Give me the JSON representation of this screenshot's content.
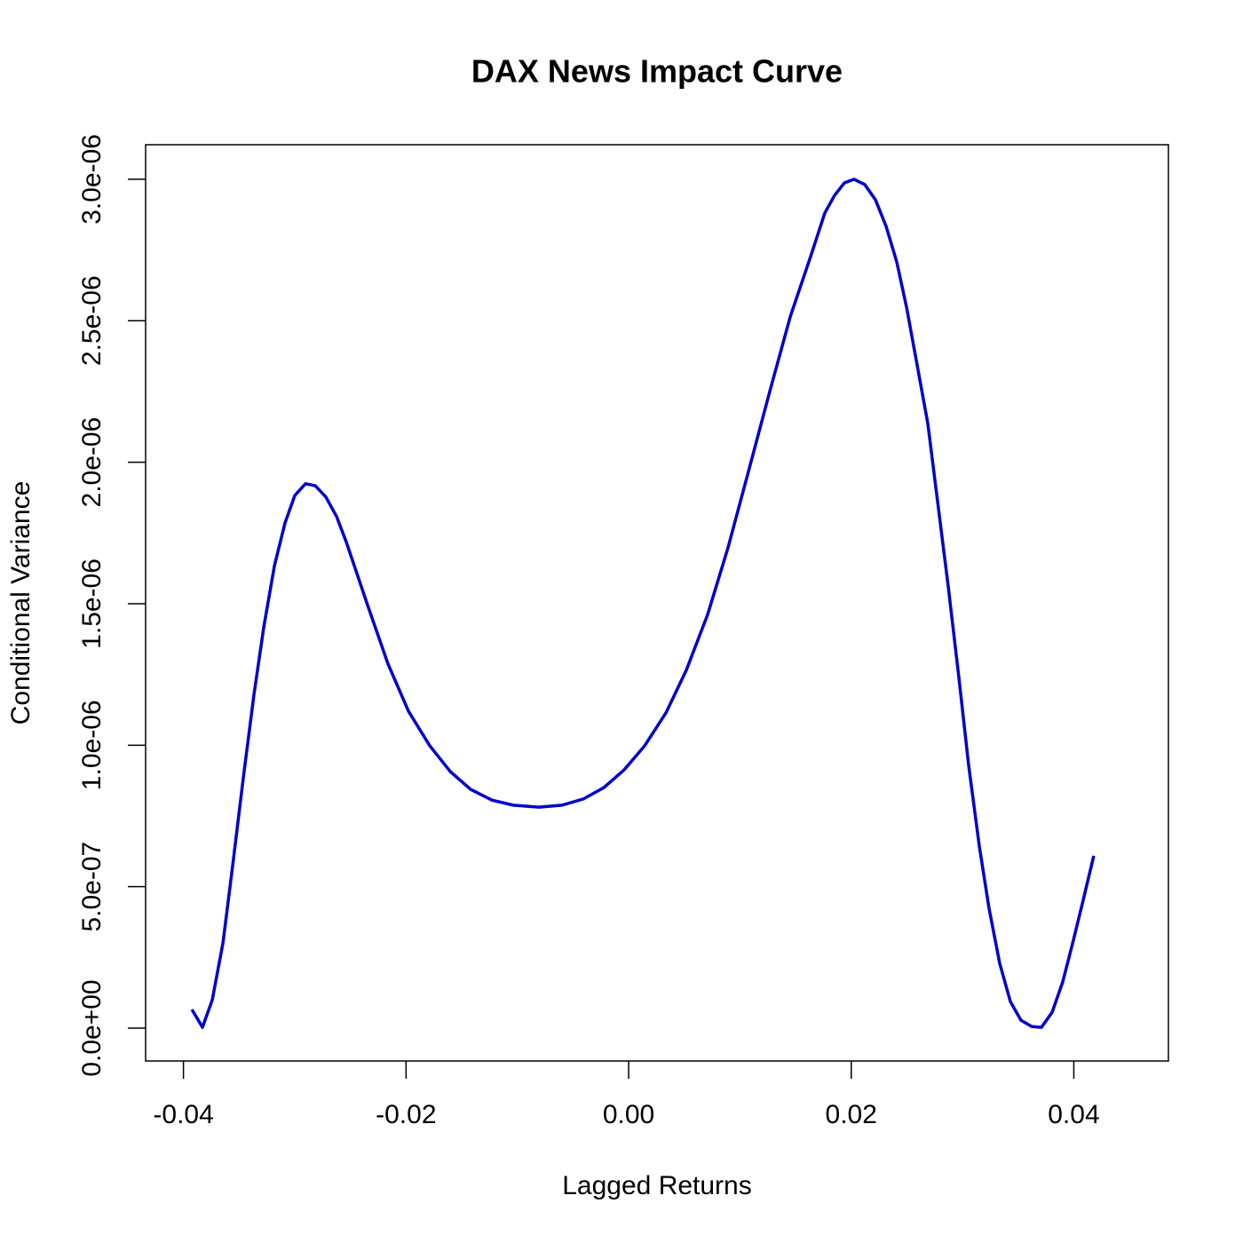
{
  "chart_data": {
    "type": "line",
    "title": "DAX News Impact Curve",
    "x_label": "Lagged Returns",
    "y_label": "Conditional Variance",
    "x": [
      -0.03924,
      -0.03829,
      -0.03741,
      -0.03645,
      -0.03557,
      -0.03462,
      -0.03366,
      -0.03278,
      -0.03182,
      -0.03087,
      -0.02999,
      -0.02903,
      -0.02816,
      -0.0272,
      -0.02624,
      -0.02536,
      -0.02345,
      -0.02162,
      -0.01978,
      -0.01787,
      -0.01603,
      -0.0142,
      -0.01228,
      -0.01037,
      -0.00806,
      -0.00598,
      -0.00407,
      -0.00223,
      -0.0004,
      0.00144,
      0.00335,
      0.00518,
      0.0071,
      0.00893,
      0.01077,
      0.01268,
      0.01452,
      0.01635,
      0.01763,
      0.0185,
      0.01938,
      0.02026,
      0.02122,
      0.02217,
      0.02313,
      0.02409,
      0.02497,
      0.02592,
      0.02688,
      0.02776,
      0.02871,
      0.02967,
      0.03055,
      0.03151,
      0.03238,
      0.03334,
      0.0343,
      0.03525,
      0.03621,
      0.03709,
      0.03805,
      0.039,
      0.03988,
      0.04084,
      0.04179
    ],
    "series": [
      {
        "name": "News Impact",
        "color": "#0000cd",
        "values": [
          6.6e-08,
          3e-09,
          1e-07,
          3.01e-07,
          5.77e-07,
          8.85e-07,
          1.18e-06,
          1.418e-06,
          1.635e-06,
          1.786e-06,
          1.883e-06,
          1.924e-06,
          1.917e-06,
          1.877e-06,
          1.808e-06,
          1.717e-06,
          1.494e-06,
          1.287e-06,
          1.12e-06,
          9.98e-07,
          9.07e-07,
          8.44e-07,
          8.06e-07,
          7.88e-07,
          7.81e-07,
          7.88e-07,
          8.1e-07,
          8.5e-07,
          9.13e-07,
          9.98e-07,
          1.114e-06,
          1.265e-06,
          1.462e-06,
          1.698e-06,
          1.968e-06,
          2.25e-06,
          2.514e-06,
          2.727e-06,
          2.881e-06,
          2.943e-06,
          2.987e-06,
          3e-06,
          2.981e-06,
          2.928e-06,
          2.834e-06,
          2.708e-06,
          2.548e-06,
          2.344e-06,
          2.137e-06,
          1.861e-06,
          1.563e-06,
          1.24e-06,
          9.29e-07,
          6.43e-07,
          4.24e-07,
          2.29e-07,
          9.4e-08,
          2.8e-08,
          6e-09,
          3e-09,
          5.6e-08,
          1.63e-07,
          2.98e-07,
          4.52e-07,
          6.09e-07
        ]
      }
    ],
    "xlim": [
      -0.0434,
      0.0485
    ],
    "ylim": [
      -1.16e-07,
      3.122e-06
    ],
    "xticks": [
      -0.04,
      -0.02,
      {
        "value": 0,
        "label": "0.00"
      },
      0.02,
      0.04
    ],
    "yticks": [
      {
        "value": 0,
        "label": "0.0e+00"
      },
      {
        "value": 5e-07,
        "label": "5.0e-07"
      },
      {
        "value": 1e-06,
        "label": "1.0e-06"
      },
      {
        "value": 1.5e-06,
        "label": "1.5e-06"
      },
      {
        "value": 2e-06,
        "label": "2.0e-06"
      },
      {
        "value": 2.5e-06,
        "label": "2.5e-06"
      },
      {
        "value": 3e-06,
        "label": "3.0e-06"
      }
    ]
  }
}
